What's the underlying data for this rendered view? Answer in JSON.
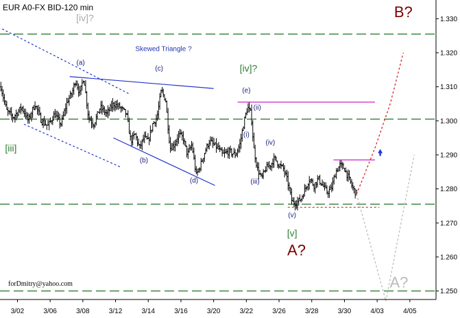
{
  "chart_data": {
    "type": "ohlc",
    "title": "EUR A0-FX BID-120 min",
    "credit": "forDmitry@yahoo.com",
    "ylim": [
      1.2475,
      1.3355
    ],
    "yticks": [
      1.25,
      1.26,
      1.27,
      1.28,
      1.29,
      1.3,
      1.31,
      1.32,
      1.33
    ],
    "ytick_labels": [
      "1.250",
      "1.260",
      "1.270",
      "1.280",
      "1.290",
      "1.300",
      "1.310",
      "1.320",
      "1.330"
    ],
    "xlim": [
      0,
      100
    ],
    "xticks": [
      {
        "x": 4,
        "label": "3/02"
      },
      {
        "x": 11.5,
        "label": "3/06"
      },
      {
        "x": 19,
        "label": "3/08"
      },
      {
        "x": 26.5,
        "label": "3/12"
      },
      {
        "x": 34,
        "label": "3/14"
      },
      {
        "x": 41.5,
        "label": "3/16"
      },
      {
        "x": 49,
        "label": "3/20"
      },
      {
        "x": 56.5,
        "label": "3/22"
      },
      {
        "x": 64,
        "label": "3/26"
      },
      {
        "x": 71.5,
        "label": "3/28"
      },
      {
        "x": 79,
        "label": "3/30"
      },
      {
        "x": 86.5,
        "label": "4/03"
      },
      {
        "x": 94,
        "label": "4/05"
      }
    ],
    "grid": false,
    "price_path": [
      [
        0.2,
        1.31
      ],
      [
        1.5,
        1.303
      ],
      [
        3,
        1.301
      ],
      [
        5,
        1.304
      ],
      [
        6.5,
        1.3
      ],
      [
        8,
        1.305
      ],
      [
        9.5,
        1.3
      ],
      [
        11,
        1.2985
      ],
      [
        12.5,
        1.302
      ],
      [
        14,
        1.299
      ],
      [
        15.5,
        1.306
      ],
      [
        16.5,
        1.308
      ],
      [
        17.3,
        1.312
      ],
      [
        18.3,
        1.308
      ],
      [
        19.2,
        1.313
      ],
      [
        20.3,
        1.301
      ],
      [
        21.5,
        1.299
      ],
      [
        23,
        1.304
      ],
      [
        24.5,
        1.302
      ],
      [
        26,
        1.305
      ],
      [
        27.5,
        1.304
      ],
      [
        29,
        1.302
      ],
      [
        30,
        1.294
      ],
      [
        31,
        1.296
      ],
      [
        32,
        1.292
      ],
      [
        33,
        1.295
      ],
      [
        34,
        1.294
      ],
      [
        35,
        1.299
      ],
      [
        36,
        1.301
      ],
      [
        37,
        1.309
      ],
      [
        38,
        1.306
      ],
      [
        39,
        1.292
      ],
      [
        40,
        1.293
      ],
      [
        41,
        1.296
      ],
      [
        42,
        1.295
      ],
      [
        43,
        1.29
      ],
      [
        44,
        1.293
      ],
      [
        45,
        1.284
      ],
      [
        46,
        1.287
      ],
      [
        47,
        1.291
      ],
      [
        48,
        1.294
      ],
      [
        49,
        1.293
      ],
      [
        50,
        1.292
      ],
      [
        51,
        1.29
      ],
      [
        52.5,
        1.291
      ],
      [
        54,
        1.29
      ],
      [
        55,
        1.293
      ],
      [
        56,
        1.3
      ],
      [
        56.8,
        1.304
      ],
      [
        57.6,
        1.302
      ],
      [
        58.2,
        1.292
      ],
      [
        59,
        1.286
      ],
      [
        60,
        1.283
      ],
      [
        61,
        1.286
      ],
      [
        62,
        1.287
      ],
      [
        63,
        1.289
      ],
      [
        64,
        1.287
      ],
      [
        65,
        1.286
      ],
      [
        66,
        1.282
      ],
      [
        67,
        1.276
      ],
      [
        68,
        1.276
      ],
      [
        69,
        1.277
      ],
      [
        70,
        1.28
      ],
      [
        71,
        1.283
      ],
      [
        72,
        1.281
      ],
      [
        73,
        1.283
      ],
      [
        74,
        1.281
      ],
      [
        75,
        1.279
      ],
      [
        76,
        1.28
      ],
      [
        77,
        1.285
      ],
      [
        78,
        1.287
      ],
      [
        79,
        1.286
      ],
      [
        80,
        1.283
      ],
      [
        81,
        1.28
      ],
      [
        81.8,
        1.2785
      ]
    ],
    "hlines": [
      {
        "y": 1.3255,
        "color": "#2e7d32",
        "style": "dashed"
      },
      {
        "y": 1.3005,
        "color": "#2e7d32",
        "style": "dashed"
      },
      {
        "y": 1.2755,
        "color": "#2e7d32",
        "style": "dashed"
      },
      {
        "y": 1.25,
        "color": "#2e7d32",
        "style": "dashed"
      }
    ],
    "segments": [
      {
        "x1": 0.5,
        "y1": 1.327,
        "x2": 29.5,
        "y2": 1.308,
        "color": "#2233cc",
        "style": "dotted"
      },
      {
        "x1": 5.5,
        "y1": 1.299,
        "x2": 27.5,
        "y2": 1.2865,
        "color": "#2233cc",
        "style": "dotted"
      },
      {
        "x1": 16,
        "y1": 1.313,
        "x2": 49,
        "y2": 1.3095,
        "color": "#2233cc",
        "style": "solid"
      },
      {
        "x1": 26,
        "y1": 1.295,
        "x2": 49.3,
        "y2": 1.281,
        "color": "#2233cc",
        "style": "solid"
      },
      {
        "x1": 54.5,
        "y1": 1.3055,
        "x2": 86,
        "y2": 1.3055,
        "color": "#cc22cc",
        "style": "solid"
      },
      {
        "x1": 76.5,
        "y1": 1.2885,
        "x2": 86,
        "y2": 1.2885,
        "color": "#cc22cc",
        "style": "solid"
      },
      {
        "x1": 66,
        "y1": 1.2746,
        "x2": 87,
        "y2": 1.2746,
        "color": "#cc3333",
        "style": "dotted"
      }
    ],
    "projections": [
      {
        "points": [
          [
            81.8,
            1.2785
          ],
          [
            86,
            1.292
          ],
          [
            89.5,
            1.305
          ],
          [
            92.5,
            1.32
          ]
        ],
        "color": "#dd2222",
        "style": "dotted"
      },
      {
        "points": [
          [
            81.8,
            1.2785
          ],
          [
            88.5,
            1.247
          ]
        ],
        "color": "#bbbbbb",
        "style": "dotted"
      },
      {
        "points": [
          [
            88.5,
            1.247
          ],
          [
            95,
            1.29
          ]
        ],
        "color": "#bbbbbb",
        "style": "dotted"
      }
    ],
    "annotations": [
      {
        "text": "[iv]?",
        "x": 19.5,
        "y": 1.3293,
        "color": "#aaaaaa",
        "size": 14
      },
      {
        "text": "Skewed Triangle ?",
        "x": 37.5,
        "y": 1.3205,
        "color": "#2233aa",
        "size": 10
      },
      {
        "text": "(a)",
        "x": 18.5,
        "y": 1.3165,
        "color": "#1a237e",
        "size": 10
      },
      {
        "text": "(b)",
        "x": 33,
        "y": 1.2878,
        "color": "#1a237e",
        "size": 10
      },
      {
        "text": "(c)",
        "x": 36.5,
        "y": 1.3148,
        "color": "#1a237e",
        "size": 10
      },
      {
        "text": "(d)",
        "x": 44.5,
        "y": 1.2818,
        "color": "#1a237e",
        "size": 10
      },
      {
        "text": "(e)",
        "x": 56.5,
        "y": 1.3083,
        "color": "#1a237e",
        "size": 10
      },
      {
        "text": "[iv]?",
        "x": 57,
        "y": 1.3145,
        "color": "#2e7d32",
        "size": 14
      },
      {
        "text": "(ii)",
        "x": 59,
        "y": 1.3033,
        "color": "#1a237e",
        "size": 10
      },
      {
        "text": "(i)",
        "x": 56.5,
        "y": 1.2953,
        "color": "#1a237e",
        "size": 10
      },
      {
        "text": "(iv)",
        "x": 62,
        "y": 1.293,
        "color": "#1a237e",
        "size": 10
      },
      {
        "text": "(iii)",
        "x": 58.5,
        "y": 1.2815,
        "color": "#1a237e",
        "size": 10
      },
      {
        "text": "(v)",
        "x": 67,
        "y": 1.2717,
        "color": "#1a237e",
        "size": 10
      },
      {
        "text": "[v]",
        "x": 67,
        "y": 1.266,
        "color": "#2e7d32",
        "size": 14
      },
      {
        "text": "A?",
        "x": 68,
        "y": 1.2605,
        "color": "#7a0000",
        "size": 22
      },
      {
        "text": "B?",
        "x": 92.5,
        "y": 1.3305,
        "color": "#7a0000",
        "size": 22
      },
      {
        "text": "A?",
        "x": 91.5,
        "y": 1.251,
        "color": "#bbbbbb",
        "size": 22
      },
      {
        "text": "[iii]",
        "x": 2.5,
        "y": 1.291,
        "color": "#2e7d32",
        "size": 14
      }
    ],
    "arrows": [
      {
        "x": 87.2,
        "y": 1.2905,
        "direction": "up",
        "color": "#1a33dd"
      }
    ]
  }
}
